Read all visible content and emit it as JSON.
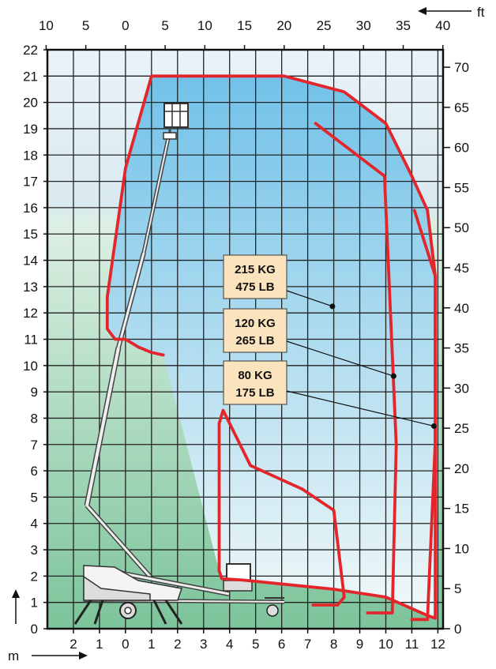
{
  "chart_data": {
    "type": "line",
    "title": "",
    "units": {
      "left": "m",
      "right": "ft"
    },
    "axes": {
      "bottom_m": {
        "ticks": [
          "2",
          "1",
          "0",
          "1",
          "2",
          "3",
          "4",
          "5",
          "6",
          "7",
          "8",
          "9",
          "10",
          "11",
          "12"
        ]
      },
      "left_m": {
        "ticks": [
          "0",
          "1",
          "2",
          "3",
          "4",
          "5",
          "6",
          "7",
          "8",
          "9",
          "10",
          "11",
          "12",
          "13",
          "14",
          "15",
          "16",
          "17",
          "18",
          "19",
          "20",
          "21",
          "22"
        ]
      },
      "top_ft": {
        "ticks": [
          "10",
          "5",
          "0",
          "5",
          "10",
          "15",
          "20",
          "25",
          "30",
          "35",
          "40"
        ]
      },
      "right_ft": {
        "ticks": [
          "0",
          "5",
          "10",
          "15",
          "20",
          "25",
          "30",
          "35",
          "40",
          "45",
          "50",
          "55",
          "60",
          "65",
          "70"
        ]
      },
      "xlim_m": [
        -3,
        12.2
      ],
      "ylim_m": [
        0,
        22
      ]
    },
    "grid": true,
    "series": [
      {
        "name": "215 KG / 475 LB",
        "color": "#e3262b",
        "x": [
          3.6,
          3.6,
          3.75,
          4.8,
          6.8,
          8.0,
          8.4,
          8.15,
          7.2
        ],
        "y": [
          2.2,
          7.8,
          8.3,
          6.2,
          5.3,
          4.5,
          1.2,
          0.9,
          0.9
        ],
        "label_box": [
          "215 KG",
          "475 LB"
        ],
        "leader_end": [
          7.95,
          12.25
        ]
      },
      {
        "name": "120 KG / 265 LB",
        "color": "#e3262b",
        "x": [
          7.3,
          9.95,
          10.4,
          10.25,
          9.3
        ],
        "y": [
          19.2,
          17.2,
          7.0,
          0.6,
          0.6
        ],
        "label_box": [
          "120 KG",
          "265 LB"
        ],
        "leader_end": [
          10.3,
          9.6
        ]
      },
      {
        "name": "80 KG / 175 LB",
        "color": "#e3262b",
        "x": [
          11.1,
          11.9,
          11.9,
          11.6,
          11.0
        ],
        "y": [
          15.9,
          13.4,
          7.1,
          0.35,
          0.35
        ],
        "label_box": [
          "80 KG",
          "175 LB"
        ],
        "leader_end": [
          11.85,
          7.7
        ]
      },
      {
        "name": "",
        "color": "#e3262b",
        "x": [
          3.6,
          3.7,
          4.5,
          8.0,
          10.0,
          11.6,
          11.9,
          11.9,
          11.9,
          11.6,
          11.0,
          10.0,
          8.4,
          6.1,
          3.6,
          3.6,
          3.6,
          3.75,
          3.0,
          2.0,
          1.5,
          1.0,
          0.0,
          -0.7,
          -0.7,
          -0.4,
          0.0,
          0.5,
          1.0,
          1.45
        ],
        "y": [
          2.2,
          1.9,
          1.85,
          1.5,
          1.2,
          0.5,
          0.4,
          7.1,
          13.4,
          15.9,
          17.2,
          19.2,
          20.4,
          21.0,
          21.0,
          21.0,
          21.0,
          21.0,
          21.0,
          21.0,
          21.0,
          21.0,
          17.5,
          12.6,
          11.4,
          11.0,
          11.0,
          10.7,
          10.5,
          10.4
        ],
        "role": "outer envelope"
      }
    ]
  },
  "labels": {
    "box1_l1": "215 KG",
    "box1_l2": "475 LB",
    "box2_l1": "120 KG",
    "box2_l2": "265 LB",
    "box3_l1": "80 KG",
    "box3_l2": "175 LB",
    "unit_m": "m",
    "unit_ft": "ft"
  },
  "colors": {
    "curve": "#e3262b",
    "label_box_fill": "#fbe3bd",
    "sky_top": "#5fb9e6",
    "ground_bottom": "#6cbf8c"
  }
}
